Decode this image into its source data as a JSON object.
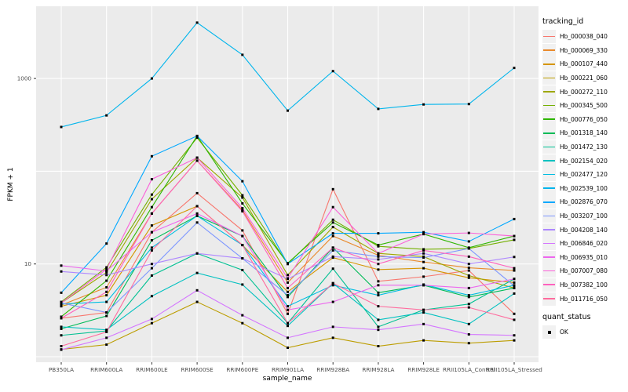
{
  "figure": {
    "panel_bg": "#EBEBEB",
    "grid_color": "#FFFFFF",
    "point_color": "#000000",
    "axis_text_color": "#4D4D4D",
    "tick_color": "#333333"
  },
  "legend": {
    "tracking_title": "tracking_id",
    "quant_title": "quant_status",
    "quant_items": [
      {
        "label": "OK",
        "marker": "black-square"
      }
    ]
  },
  "chart_data": {
    "type": "line",
    "title": "",
    "xlabel": "sample_name",
    "ylabel": "FPKM + 1",
    "y_scale": "log10",
    "ylim": [
      1,
      5600
    ],
    "y_gridlines": [
      1,
      10,
      100,
      1000
    ],
    "y_ticks": [
      {
        "label": "1000",
        "value": 1000
      },
      {
        "label": "10",
        "value": 10
      }
    ],
    "grid": true,
    "legend_position": "right",
    "point_marker": "black-square",
    "categories": [
      "PB350LA",
      "RRIM600LA",
      "RRIM600LE",
      "RRIM600SE",
      "RRIM600PE",
      "RRIM901LA",
      "RRIM928BA",
      "RRIM928LA",
      "RRIM928LE",
      "RRII105LA_Control",
      "RRII105LA_Stressed"
    ],
    "series": [
      {
        "name": "Hb_000038_040",
        "color": "#F8766D",
        "values": [
          2.6,
          3.0,
          22,
          58,
          23,
          2.9,
          64,
          6.5,
          7.3,
          8.5,
          2.9
        ]
      },
      {
        "name": "Hb_000069_330",
        "color": "#E98A2C",
        "values": [
          3.6,
          5.6,
          35,
          130,
          38,
          6.3,
          20,
          12.4,
          10.5,
          9.1,
          8.5
        ]
      },
      {
        "name": "Hb_000107_440",
        "color": "#D59500",
        "values": [
          3.5,
          4.6,
          26,
          42,
          16,
          5.0,
          11.7,
          8.7,
          9.0,
          7.1,
          6.3
        ]
      },
      {
        "name": "Hb_000221_060",
        "color": "#BC9D00",
        "values": [
          1.2,
          1.35,
          2.3,
          3.9,
          2.3,
          1.25,
          1.6,
          1.3,
          1.5,
          1.4,
          1.5
        ]
      },
      {
        "name": "Hb_000272_110",
        "color": "#9EA700",
        "values": [
          3.8,
          8.1,
          50,
          140,
          52,
          7.6,
          25,
          13,
          12,
          7.5,
          5.5
        ]
      },
      {
        "name": "Hb_000345_500",
        "color": "#74B000",
        "values": [
          3.9,
          9.2,
          56,
          230,
          55,
          10.0,
          30,
          15.5,
          14.4,
          14.7,
          18.2
        ]
      },
      {
        "name": "Hb_000776_050",
        "color": "#2FB600",
        "values": [
          2.7,
          6.6,
          41,
          240,
          45,
          10.2,
          28,
          16,
          21,
          15,
          20
        ]
      },
      {
        "name": "Hb_001318_140",
        "color": "#00BB57",
        "values": [
          2.0,
          2.75,
          18,
          33,
          20,
          4.4,
          15,
          4.9,
          5.9,
          4.4,
          5.5
        ]
      },
      {
        "name": "Hb_001472_130",
        "color": "#00C092",
        "values": [
          1.7,
          1.9,
          7.5,
          13,
          8.6,
          2.3,
          8.9,
          2.1,
          3.2,
          3.7,
          6.9
        ]
      },
      {
        "name": "Hb_002154_020",
        "color": "#00C1C0",
        "values": [
          2.1,
          1.95,
          4.5,
          8.0,
          6.0,
          2.15,
          6.2,
          2.5,
          3.0,
          2.25,
          4.8
        ]
      },
      {
        "name": "Hb_002477_120",
        "color": "#00BDE2",
        "values": [
          3.7,
          3.9,
          15,
          33,
          16,
          3.5,
          5.9,
          4.6,
          6.0,
          4.6,
          5.9
        ]
      },
      {
        "name": "Hb_002539_100",
        "color": "#00B5EC",
        "values": [
          300,
          400,
          1000,
          4000,
          1800,
          450,
          1200,
          470,
          525,
          530,
          1300
        ]
      },
      {
        "name": "Hb_002876_070",
        "color": "#00A8FF",
        "values": [
          4.9,
          16.6,
          145,
          240,
          78,
          10,
          21.4,
          21.4,
          22,
          17.5,
          30.5
        ]
      },
      {
        "name": "Hb_003207_100",
        "color": "#7C96FF",
        "values": [
          3.8,
          3.0,
          9.0,
          28,
          11.5,
          4.6,
          14,
          12,
          11.7,
          14.7,
          5.8
        ]
      },
      {
        "name": "Hb_004208_140",
        "color": "#AE87FF",
        "values": [
          8.3,
          7.6,
          10,
          13,
          11.5,
          6.9,
          12,
          11.2,
          13,
          10,
          11.9
        ]
      },
      {
        "name": "Hb_006846_020",
        "color": "#D475FF",
        "values": [
          1.19,
          1.6,
          2.55,
          5.2,
          2.8,
          1.6,
          2.1,
          1.95,
          2.25,
          1.74,
          1.7
        ]
      },
      {
        "name": "Hb_006935_010",
        "color": "#ED68EE",
        "values": [
          9.6,
          8.4,
          22,
          35,
          20,
          3.2,
          3.9,
          5.9,
          5.9,
          5.5,
          6.9
        ]
      },
      {
        "name": "Hb_007007_080",
        "color": "#FB61D9",
        "values": [
          3.8,
          8.8,
          82,
          140,
          40,
          7.0,
          41,
          13,
          21,
          21.6,
          20
        ]
      },
      {
        "name": "Hb_007382_100",
        "color": "#FF62BE",
        "values": [
          2.6,
          5.0,
          35,
          130,
          37,
          5.5,
          15,
          10,
          14,
          12,
          9.0
        ]
      },
      {
        "name": "Hb_011716_050",
        "color": "#FF6B9E",
        "values": [
          1.3,
          1.85,
          14,
          42,
          16,
          2.3,
          6.2,
          3.5,
          3.2,
          3.4,
          2.5
        ]
      }
    ]
  }
}
